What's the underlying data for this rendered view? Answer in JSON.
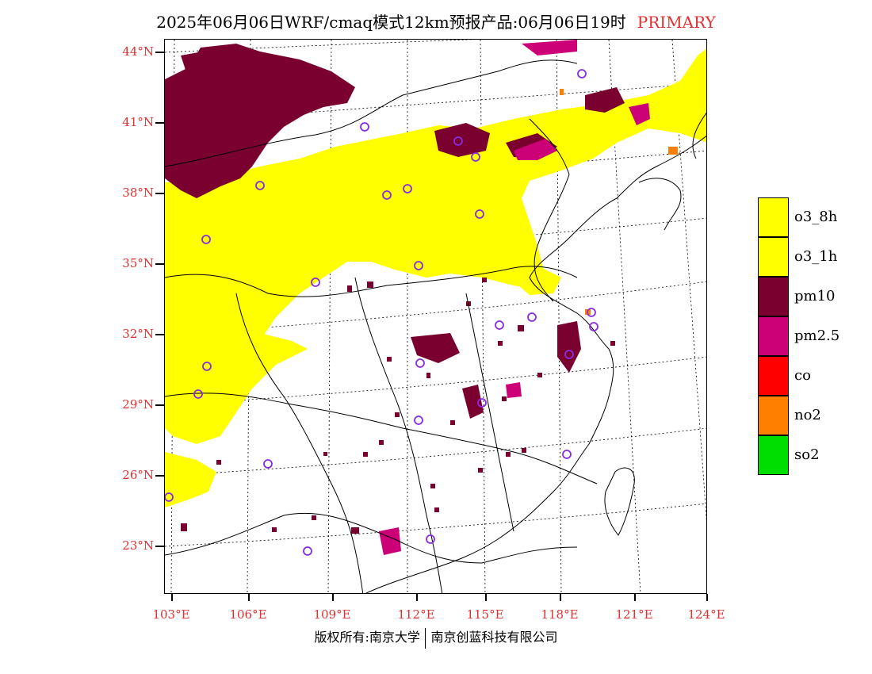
{
  "title": {
    "main": "2025年06月06日WRF/cmaq模式12km预报产品:06月06日19时",
    "tag": "PRIMARY"
  },
  "axes": {
    "lat_labels": [
      "44°N",
      "41°N",
      "38°N",
      "35°N",
      "32°N",
      "29°N",
      "26°N",
      "23°N"
    ],
    "lon_labels": [
      "103°E",
      "106°E",
      "109°E",
      "112°E",
      "115°E",
      "118°E",
      "121°E",
      "124°E"
    ]
  },
  "legend": {
    "items": [
      {
        "label": "o3_8h",
        "color": "#ffff00"
      },
      {
        "label": "o3_1h",
        "color": "#ffff00"
      },
      {
        "label": "pm10",
        "color": "#7a0030"
      },
      {
        "label": "pm2.5",
        "color": "#cc0077"
      },
      {
        "label": "co",
        "color": "#ff0000"
      },
      {
        "label": "no2",
        "color": "#ff7f00"
      },
      {
        "label": "so2",
        "color": "#00dd00"
      }
    ]
  },
  "footer": {
    "left": "版权所有:南京大学",
    "right": "南京创蓝科技有限公司"
  },
  "colors": {
    "o3": "#ffff00",
    "pm10": "#7a0030",
    "pm25": "#cc0077",
    "no2": "#ff7f00",
    "station": "#8a2be2",
    "label_red": "#e03030"
  }
}
